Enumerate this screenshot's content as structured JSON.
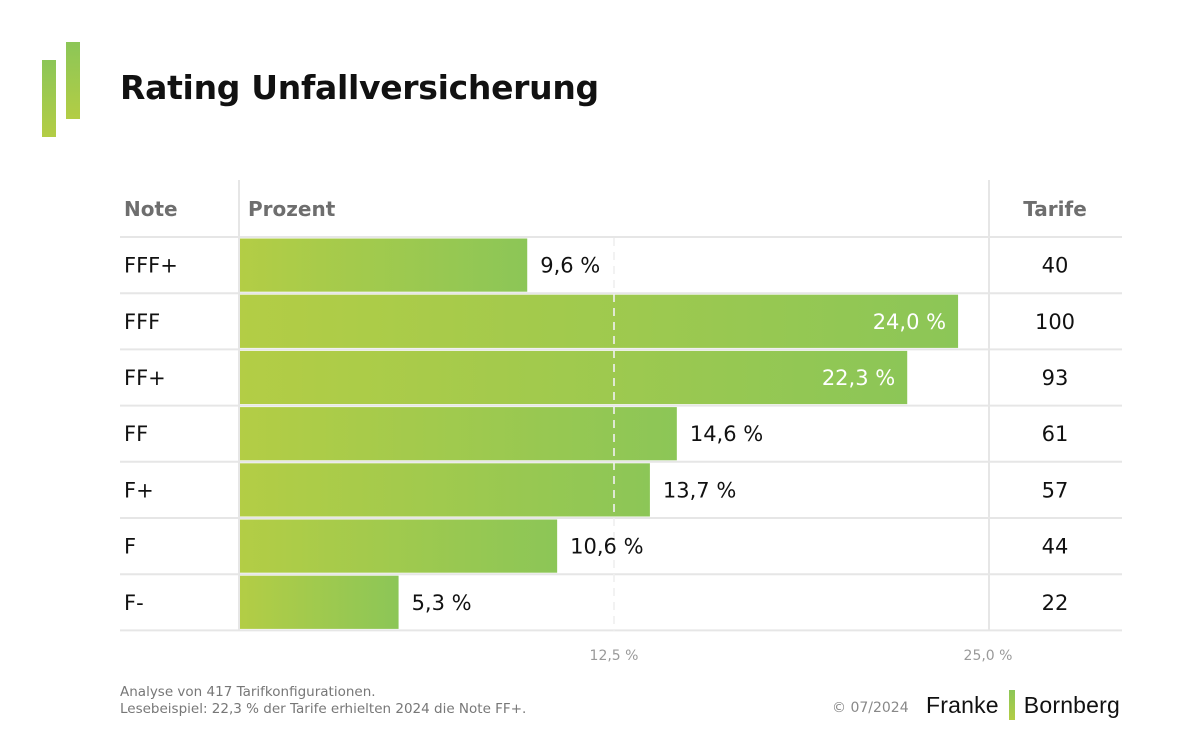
{
  "title": "Rating Unfallversicherung",
  "colors": {
    "bar_start": "#b3cd45",
    "bar_end": "#8cc657",
    "grid": "#e6e6e6",
    "header_text": "#6e6e6e",
    "tick_text": "#9a9a9a"
  },
  "chart_data": {
    "type": "bar",
    "orientation": "horizontal",
    "title": "Rating Unfallversicherung",
    "columns": {
      "note": "Note",
      "percent": "Prozent",
      "tariffs": "Tarife"
    },
    "categories": [
      "FFF+",
      "FFF",
      "FF+",
      "FF",
      "F+",
      "F",
      "F-"
    ],
    "values": [
      9.6,
      24.0,
      22.3,
      14.6,
      13.7,
      10.6,
      5.3
    ],
    "value_labels": [
      "9,6 %",
      "24,0 %",
      "22,3 %",
      "14,6 %",
      "13,7 %",
      "10,6 %",
      "5,3 %"
    ],
    "tariffs": [
      40,
      100,
      93,
      61,
      57,
      44,
      22
    ],
    "xlim": [
      0,
      25
    ],
    "x_ticks": [
      12.5,
      25.0
    ],
    "x_tick_labels": [
      "12,5 %",
      "25,0 %"
    ],
    "reference_line": 12.5,
    "unit": "%",
    "grid": true,
    "legend": "none"
  },
  "footer": {
    "note_line1": "Analyse von 417 Tarifkonfigurationen.",
    "note_line2": "Lesebeispiel: 22,3 % der Tarife erhielten 2024 die Note FF+.",
    "copyright": "© 07/2024",
    "brand_left": "Franke",
    "brand_right": "Bornberg"
  }
}
